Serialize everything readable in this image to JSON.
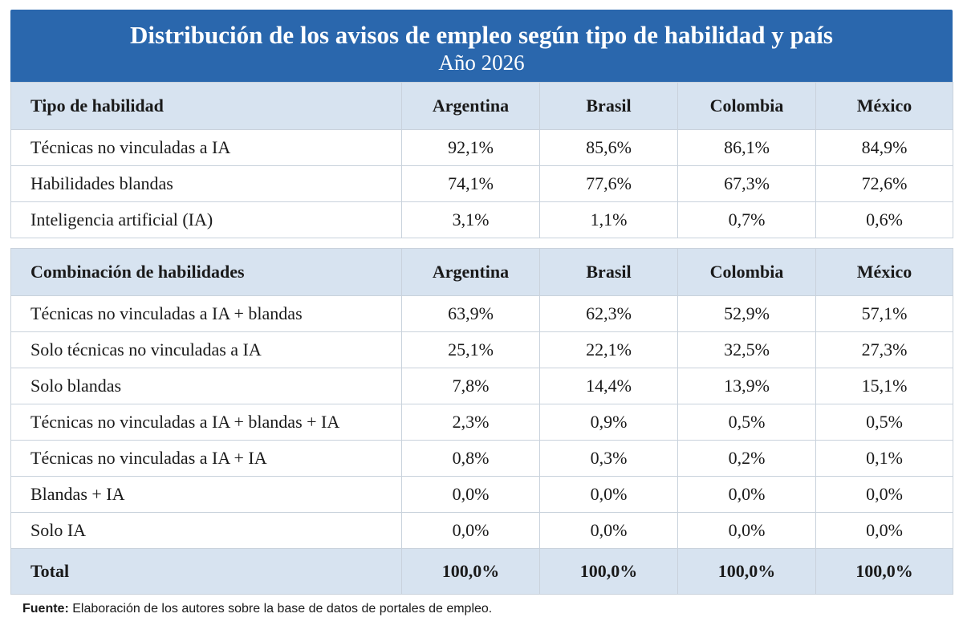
{
  "title": "Distribución de los avisos de empleo según tipo de habilidad y país",
  "subtitle": "Año 2026",
  "columns": [
    "Argentina",
    "Brasil",
    "Colombia",
    "México"
  ],
  "section1": {
    "header": "Tipo de habilidad",
    "rows": [
      {
        "label": "Técnicas no vinculadas a IA",
        "values": [
          "92,1%",
          "85,6%",
          "86,1%",
          "84,9%"
        ]
      },
      {
        "label": "Habilidades blandas",
        "values": [
          "74,1%",
          "77,6%",
          "67,3%",
          "72,6%"
        ]
      },
      {
        "label": "Inteligencia artificial (IA)",
        "values": [
          "3,1%",
          "1,1%",
          "0,7%",
          "0,6%"
        ]
      }
    ]
  },
  "section2": {
    "header": "Combinación de habilidades",
    "rows": [
      {
        "label": "Técnicas no vinculadas a IA + blandas",
        "values": [
          "63,9%",
          "62,3%",
          "52,9%",
          "57,1%"
        ]
      },
      {
        "label": "Solo técnicas no vinculadas a IA",
        "values": [
          "25,1%",
          "22,1%",
          "32,5%",
          "27,3%"
        ]
      },
      {
        "label": "Solo blandas",
        "values": [
          "7,8%",
          "14,4%",
          "13,9%",
          "15,1%"
        ]
      },
      {
        "label": "Técnicas no vinculadas a IA + blandas + IA",
        "values": [
          "2,3%",
          "0,9%",
          "0,5%",
          "0,5%"
        ]
      },
      {
        "label": "Técnicas no vinculadas a IA + IA",
        "values": [
          "0,8%",
          "0,3%",
          "0,2%",
          "0,1%"
        ]
      },
      {
        "label": "Blandas + IA",
        "values": [
          "0,0%",
          "0,0%",
          "0,0%",
          "0,0%"
        ]
      },
      {
        "label": "Solo IA",
        "values": [
          "0,0%",
          "0,0%",
          "0,0%",
          "0,0%"
        ]
      }
    ],
    "total": {
      "label": "Total",
      "values": [
        "100,0%",
        "100,0%",
        "100,0%",
        "100,0%"
      ]
    }
  },
  "source": {
    "label": "Fuente:",
    "text": "Elaboración de los autores sobre la base de datos de portales de empleo."
  }
}
